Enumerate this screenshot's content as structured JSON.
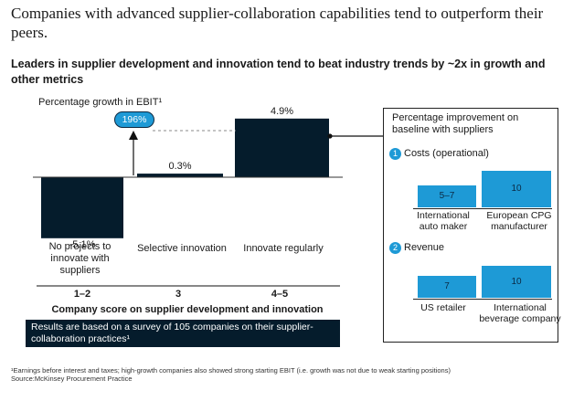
{
  "headline": "Companies with advanced supplier-collaboration capabilities tend to outperform their peers.",
  "subtitle": "Leaders in supplier development and innovation tend to beat industry trends by ~2x in growth and other metrics",
  "chart_data": [
    {
      "type": "bar",
      "ylabel": "Percentage growth in EBIT¹",
      "categories": [
        "No projects to innovate with suppliers",
        "Selective innovation",
        "Innovate regularly"
      ],
      "scores": [
        "1–2",
        "3",
        "4–5"
      ],
      "values": [
        -5.1,
        0.3,
        4.9
      ],
      "value_labels": [
        "-5.1%",
        "0.3%",
        "4.9%"
      ],
      "xlabel": "Company score on supplier development and innovation",
      "annotation": {
        "label": "196%"
      },
      "colors": {
        "bar": "#051c2c",
        "annotation": "#1e9ad6"
      }
    },
    {
      "type": "bar",
      "title": "Percentage improvement on baseline with suppliers",
      "section_number": "1",
      "section_title": "Costs (operational)",
      "categories": [
        "International auto maker",
        "European CPG manufacturer"
      ],
      "value_labels": [
        "5–7",
        "10"
      ],
      "values": [
        6,
        10
      ],
      "color": "#1e9ad6"
    },
    {
      "type": "bar",
      "section_number": "2",
      "section_title": "Revenue",
      "categories": [
        "US retailer",
        "International beverage company"
      ],
      "value_labels": [
        "7",
        "10"
      ],
      "values": [
        7,
        10
      ],
      "color": "#1e9ad6"
    }
  ],
  "note": "Results are based on a survey of 105 companies on their supplier-collaboration practices¹",
  "footnote": "¹Earnings before interest and taxes; high-growth companies also showed strong starting EBIT (i.e. growth was not due to weak starting positions)",
  "source": "Source:McKinsey Procurement Practice"
}
